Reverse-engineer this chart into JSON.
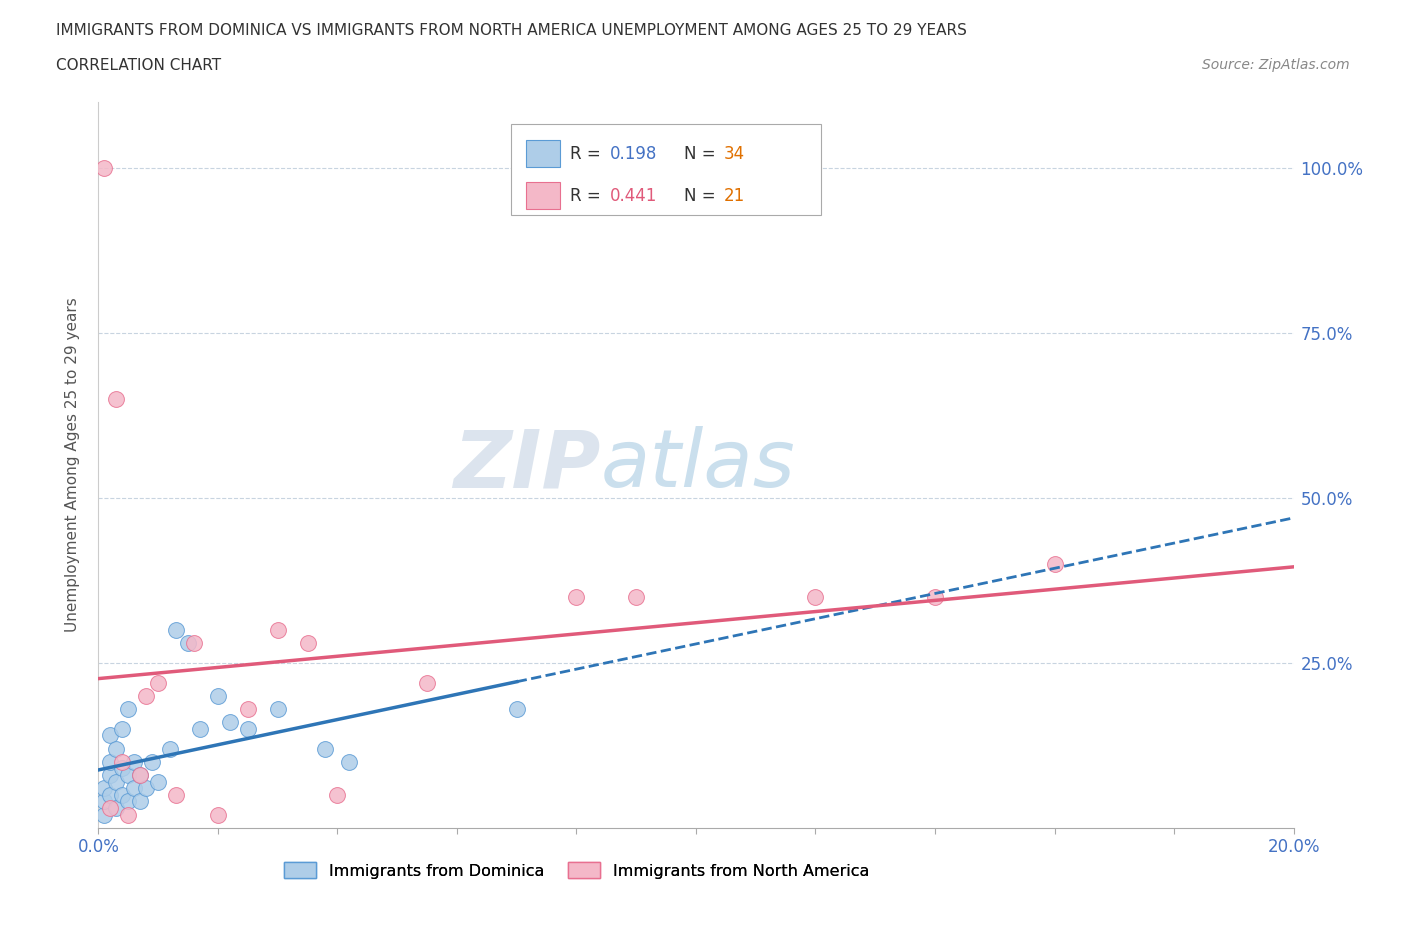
{
  "title_line1": "IMMIGRANTS FROM DOMINICA VS IMMIGRANTS FROM NORTH AMERICA UNEMPLOYMENT AMONG AGES 25 TO 29 YEARS",
  "title_line2": "CORRELATION CHART",
  "source_text": "Source: ZipAtlas.com",
  "ylabel": "Unemployment Among Ages 25 to 29 years",
  "xlim": [
    0.0,
    0.2
  ],
  "ylim": [
    0.0,
    1.1
  ],
  "dominica_R": 0.198,
  "dominica_N": 34,
  "northamerica_R": 0.441,
  "northamerica_N": 21,
  "dominica_color": "#aecde8",
  "dominica_edge_color": "#5b9bd5",
  "dominica_line_color": "#2e75b6",
  "northamerica_color": "#f4b8c8",
  "northamerica_edge_color": "#e87090",
  "northamerica_line_color": "#e05a7a",
  "grid_color": "#c8d4e0",
  "background_color": "#ffffff",
  "watermark_color": "#d0dce8",
  "blue_x": [
    0.001,
    0.001,
    0.001,
    0.002,
    0.002,
    0.002,
    0.002,
    0.003,
    0.003,
    0.003,
    0.004,
    0.004,
    0.004,
    0.005,
    0.005,
    0.005,
    0.006,
    0.006,
    0.007,
    0.007,
    0.008,
    0.009,
    0.01,
    0.012,
    0.013,
    0.015,
    0.017,
    0.02,
    0.022,
    0.025,
    0.03,
    0.038,
    0.042,
    0.07
  ],
  "blue_y": [
    0.02,
    0.04,
    0.06,
    0.05,
    0.08,
    0.1,
    0.14,
    0.03,
    0.07,
    0.12,
    0.05,
    0.09,
    0.15,
    0.04,
    0.08,
    0.18,
    0.06,
    0.1,
    0.04,
    0.08,
    0.06,
    0.1,
    0.07,
    0.12,
    0.3,
    0.28,
    0.15,
    0.2,
    0.16,
    0.15,
    0.18,
    0.12,
    0.1,
    0.18
  ],
  "pink_x": [
    0.001,
    0.002,
    0.003,
    0.004,
    0.005,
    0.007,
    0.008,
    0.01,
    0.013,
    0.016,
    0.02,
    0.025,
    0.03,
    0.035,
    0.04,
    0.055,
    0.08,
    0.09,
    0.12,
    0.14,
    0.16
  ],
  "pink_y": [
    1.0,
    0.03,
    0.65,
    0.1,
    0.02,
    0.08,
    0.2,
    0.22,
    0.05,
    0.28,
    0.02,
    0.18,
    0.3,
    0.28,
    0.05,
    0.22,
    0.35,
    0.35,
    0.35,
    0.35,
    0.4
  ],
  "blue_solid_xrange": [
    0.0,
    0.07
  ],
  "blue_dash_xrange": [
    0.07,
    0.2
  ],
  "pink_solid_xrange": [
    0.0,
    0.2
  ]
}
